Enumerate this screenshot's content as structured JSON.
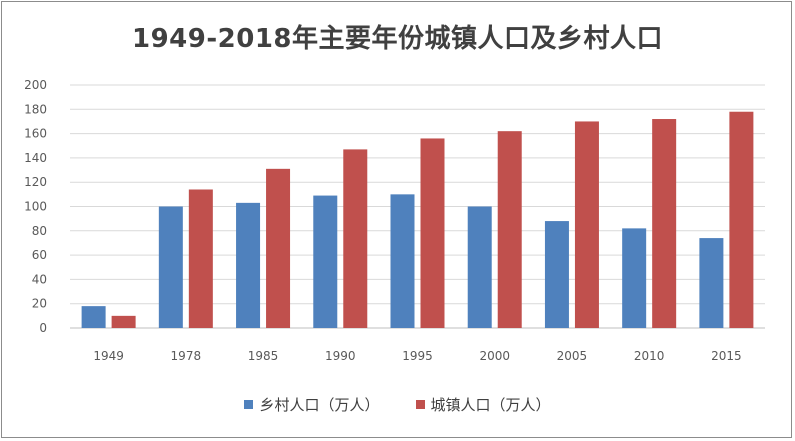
{
  "chart_data": {
    "type": "bar",
    "title": "1949-2018年主要年份城镇人口及乡村人口",
    "categories": [
      "1949",
      "1978",
      "1985",
      "1990",
      "1995",
      "2000",
      "2005",
      "2010",
      "2015"
    ],
    "series": [
      {
        "name": "乡村人口（万人）",
        "color": "#4f81bd",
        "values": [
          18,
          100,
          103,
          109,
          110,
          100,
          88,
          82,
          74
        ]
      },
      {
        "name": "城镇人口（万人）",
        "color": "#c0504d",
        "values": [
          10,
          114,
          131,
          147,
          156,
          162,
          170,
          172,
          178
        ]
      }
    ],
    "yticks": [
      "0",
      "20",
      "40",
      "60",
      "80",
      "100",
      "120",
      "140",
      "160",
      "180",
      "200"
    ],
    "ylim": [
      0,
      200
    ],
    "grid": true,
    "legend_position": "bottom"
  }
}
